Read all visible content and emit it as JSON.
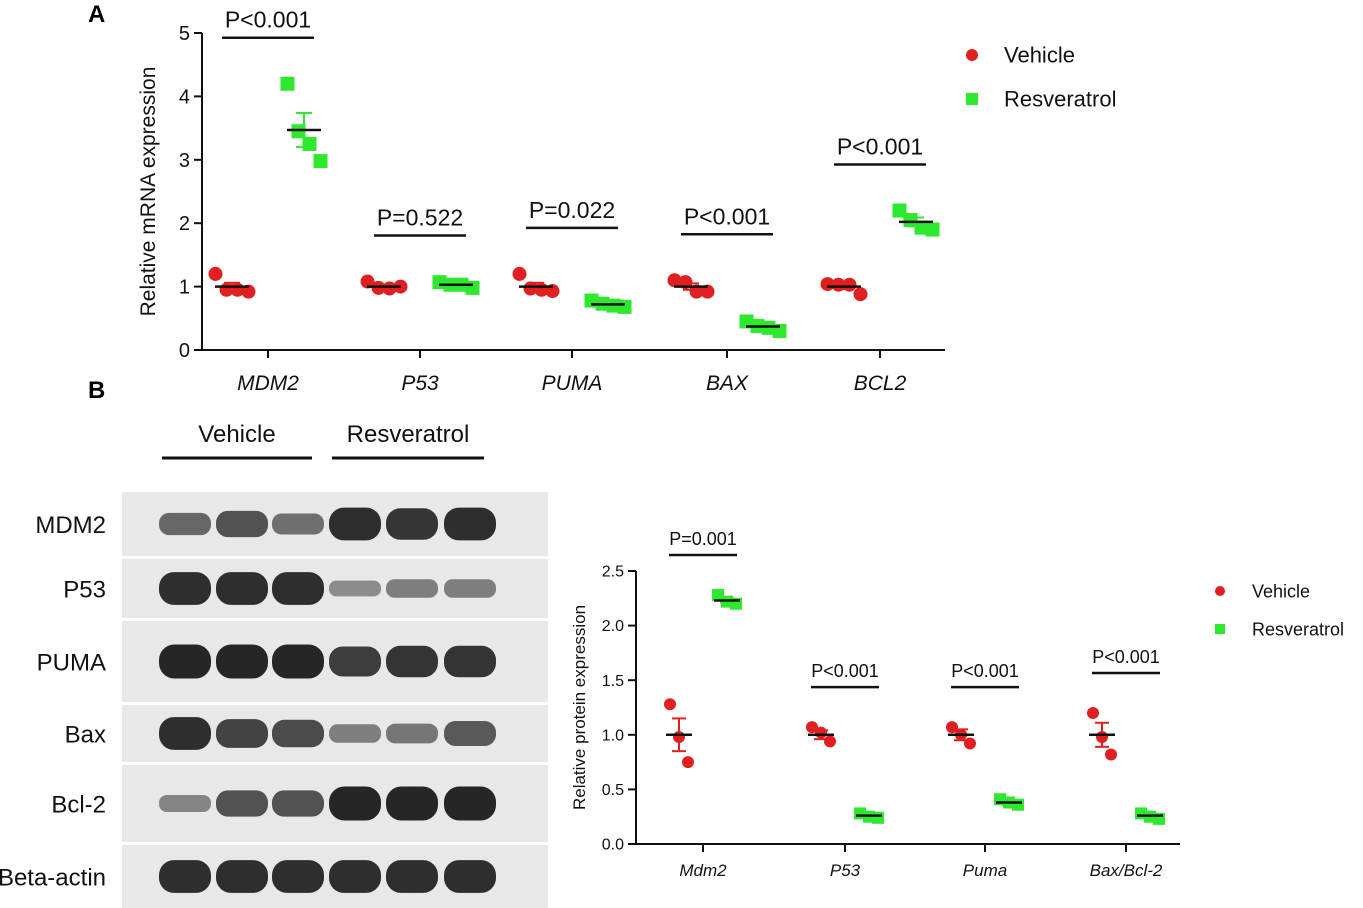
{
  "panels": {
    "a_label": "A",
    "b_label": "B"
  },
  "colors": {
    "vehicle": "#e02020",
    "resveratrol": "#2ee82e",
    "blot_bg": "#e8e8e8",
    "band": "#262626"
  },
  "chart_data": [
    {
      "type": "scatter",
      "panel": "A",
      "xlabel": "",
      "ylabel": "Relative mRNA expression",
      "ylim": [
        0,
        5
      ],
      "yticks": [
        "0",
        "1",
        "2",
        "3",
        "4",
        "5"
      ],
      "categories": [
        "MDM2",
        "P53",
        "PUMA",
        "BAX",
        "BCL2"
      ],
      "legend_position": "top-right",
      "series": [
        {
          "name": "Vehicle",
          "marker": "circle",
          "points": [
            [
              1.2,
              0.95,
              0.95,
              0.92
            ],
            [
              1.08,
              0.98,
              0.97,
              1.0
            ],
            [
              1.2,
              0.97,
              0.95,
              0.93
            ],
            [
              1.1,
              1.07,
              0.92,
              0.92
            ],
            [
              1.04,
              1.03,
              1.03,
              0.88
            ]
          ],
          "mean": [
            1.0,
            1.0,
            1.0,
            1.0,
            1.0
          ],
          "sem": [
            0.06,
            0.03,
            0.06,
            0.05,
            0.04
          ]
        },
        {
          "name": "Resveratrol",
          "marker": "square",
          "points": [
            [
              4.2,
              3.45,
              3.25,
              2.98
            ],
            [
              1.07,
              1.03,
              1.03,
              0.98
            ],
            [
              0.78,
              0.73,
              0.7,
              0.68
            ],
            [
              0.45,
              0.38,
              0.35,
              0.3
            ],
            [
              2.2,
              2.05,
              1.93,
              1.9
            ]
          ],
          "mean": [
            3.47,
            1.03,
            0.72,
            0.37,
            2.02
          ],
          "sem": [
            0.27,
            0.02,
            0.02,
            0.03,
            0.07
          ]
        }
      ],
      "annotations": [
        "P<0.001",
        "P=0.522",
        "P=0.022",
        "P<0.001",
        "P<0.001"
      ]
    },
    {
      "type": "scatter",
      "panel": "B",
      "xlabel": "",
      "ylabel": "Relative protein expression",
      "ylim": [
        0,
        2.5
      ],
      "yticks": [
        "0.0",
        "0.5",
        "1.0",
        "1.5",
        "2.0",
        "2.5"
      ],
      "categories": [
        "Mdm2",
        "P53",
        "Puma",
        "Bax/Bcl-2"
      ],
      "legend_position": "top-right",
      "series": [
        {
          "name": "Vehicle",
          "marker": "circle",
          "points": [
            [
              1.28,
              0.98,
              0.75
            ],
            [
              1.07,
              1.02,
              0.94
            ],
            [
              1.07,
              1.0,
              0.92
            ],
            [
              1.2,
              0.98,
              0.82
            ]
          ],
          "mean": [
            1.0,
            1.0,
            1.0,
            1.0
          ],
          "sem": [
            0.15,
            0.04,
            0.05,
            0.11
          ]
        },
        {
          "name": "Resveratrol",
          "marker": "square",
          "points": [
            [
              2.28,
              2.22,
              2.2
            ],
            [
              0.28,
              0.25,
              0.24
            ],
            [
              0.41,
              0.38,
              0.36
            ],
            [
              0.28,
              0.25,
              0.23
            ]
          ],
          "mean": [
            2.23,
            0.26,
            0.38,
            0.26
          ],
          "sem": [
            0.02,
            0.01,
            0.02,
            0.02
          ]
        }
      ],
      "annotations": [
        "P=0.001",
        "P<0.001",
        "P<0.001",
        "P<0.001"
      ]
    }
  ],
  "western_blot": {
    "group_labels": [
      "Vehicle",
      "Resveratrol"
    ],
    "rows": [
      {
        "label": "MDM2",
        "intensities": [
          0.55,
          0.7,
          0.5,
          0.95,
          0.9,
          0.95
        ]
      },
      {
        "label": "P53",
        "intensities": [
          0.95,
          0.95,
          0.95,
          0.3,
          0.4,
          0.4
        ]
      },
      {
        "label": "PUMA",
        "intensities": [
          1.0,
          1.0,
          1.0,
          0.85,
          0.9,
          0.9
        ]
      },
      {
        "label": "Bax",
        "intensities": [
          0.95,
          0.8,
          0.75,
          0.4,
          0.45,
          0.65
        ]
      },
      {
        "label": "Bcl-2",
        "intensities": [
          0.35,
          0.7,
          0.7,
          1.0,
          1.0,
          1.0
        ]
      },
      {
        "label": "Beta-actin",
        "intensities": [
          0.95,
          0.95,
          0.95,
          0.95,
          0.95,
          0.95
        ]
      }
    ]
  }
}
